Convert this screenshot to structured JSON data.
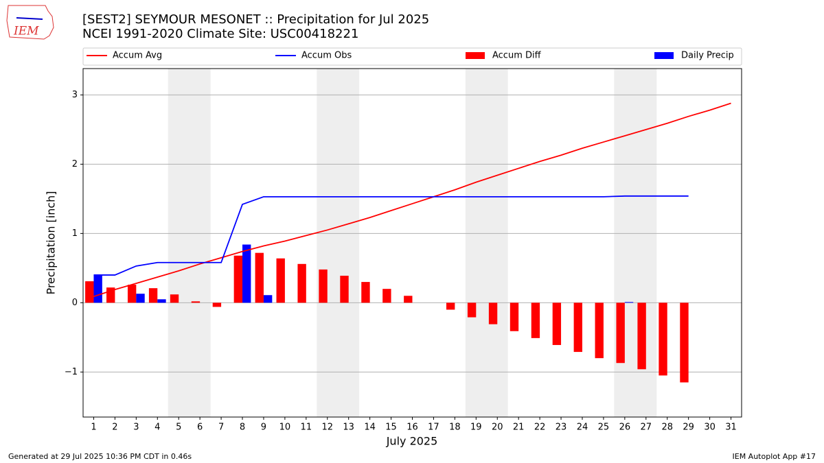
{
  "logo_text": "IEM",
  "footer_left": "Generated at 29 Jul 2025 10:36 PM CDT in 0.46s",
  "footer_right": "IEM Autoplot App #17",
  "chart_data": {
    "type": "bar",
    "title": "[SEST2] SEYMOUR MESONET :: Precipitation for Jul 2025",
    "subtitle": "NCEI 1991-2020 Climate Site: USC00418221",
    "xlabel": "July 2025",
    "ylabel": "Precipitation [inch]",
    "x": [
      1,
      2,
      3,
      4,
      5,
      6,
      7,
      8,
      9,
      10,
      11,
      12,
      13,
      14,
      15,
      16,
      17,
      18,
      19,
      20,
      21,
      22,
      23,
      24,
      25,
      26,
      27,
      28,
      29,
      30,
      31
    ],
    "xlim": [
      0.5,
      31.5
    ],
    "xticks": [
      1,
      2,
      3,
      4,
      5,
      6,
      7,
      8,
      9,
      10,
      11,
      12,
      13,
      14,
      15,
      16,
      17,
      18,
      19,
      20,
      21,
      22,
      23,
      24,
      25,
      26,
      27,
      28,
      29,
      30,
      31
    ],
    "ylim": [
      -1.65,
      3.38
    ],
    "yticks": [
      {
        "value": -1,
        "label": "−1"
      },
      0,
      1,
      2,
      3
    ],
    "grid": true,
    "shaded_spans": [
      [
        4.5,
        6.5
      ],
      [
        11.5,
        13.5
      ],
      [
        18.5,
        20.5
      ],
      [
        25.5,
        27.5
      ]
    ],
    "shade_color": "#eeeeee",
    "series": [
      {
        "name": "Accum Avg",
        "kind": "line",
        "color": "#ff0000",
        "values": [
          0.09,
          0.19,
          0.28,
          0.37,
          0.46,
          0.56,
          0.65,
          0.74,
          0.82,
          0.89,
          0.97,
          1.05,
          1.14,
          1.23,
          1.33,
          1.43,
          1.53,
          1.63,
          1.74,
          1.84,
          1.94,
          2.04,
          2.13,
          2.23,
          2.32,
          2.41,
          2.5,
          2.59,
          2.69,
          2.78,
          2.88
        ]
      },
      {
        "name": "Accum Obs",
        "kind": "line",
        "color": "#0000ff",
        "values": [
          0.4,
          0.4,
          0.53,
          0.58,
          0.58,
          0.58,
          0.58,
          1.42,
          1.53,
          1.53,
          1.53,
          1.53,
          1.53,
          1.53,
          1.53,
          1.53,
          1.53,
          1.53,
          1.53,
          1.53,
          1.53,
          1.53,
          1.53,
          1.53,
          1.53,
          1.54,
          1.54,
          1.54,
          1.54,
          null,
          null
        ]
      },
      {
        "name": "Accum Diff",
        "kind": "bar",
        "color": "#ff0000",
        "values": [
          0.31,
          0.22,
          0.26,
          0.21,
          0.12,
          0.02,
          -0.06,
          0.68,
          0.72,
          0.64,
          0.56,
          0.48,
          0.39,
          0.3,
          0.2,
          0.1,
          0.0,
          -0.1,
          -0.21,
          -0.31,
          -0.41,
          -0.51,
          -0.61,
          -0.71,
          -0.8,
          -0.87,
          -0.96,
          -1.05,
          -1.15,
          null,
          null
        ]
      },
      {
        "name": "Daily Precip",
        "kind": "bar",
        "color": "#0000ff",
        "values": [
          0.4,
          0,
          0.13,
          0.05,
          0,
          0,
          0,
          0.84,
          0.11,
          0,
          0,
          0,
          0,
          0,
          0,
          0,
          0,
          0,
          0,
          0,
          0,
          0,
          0,
          0,
          0,
          0.01,
          0,
          0,
          0,
          null,
          null
        ]
      }
    ]
  }
}
